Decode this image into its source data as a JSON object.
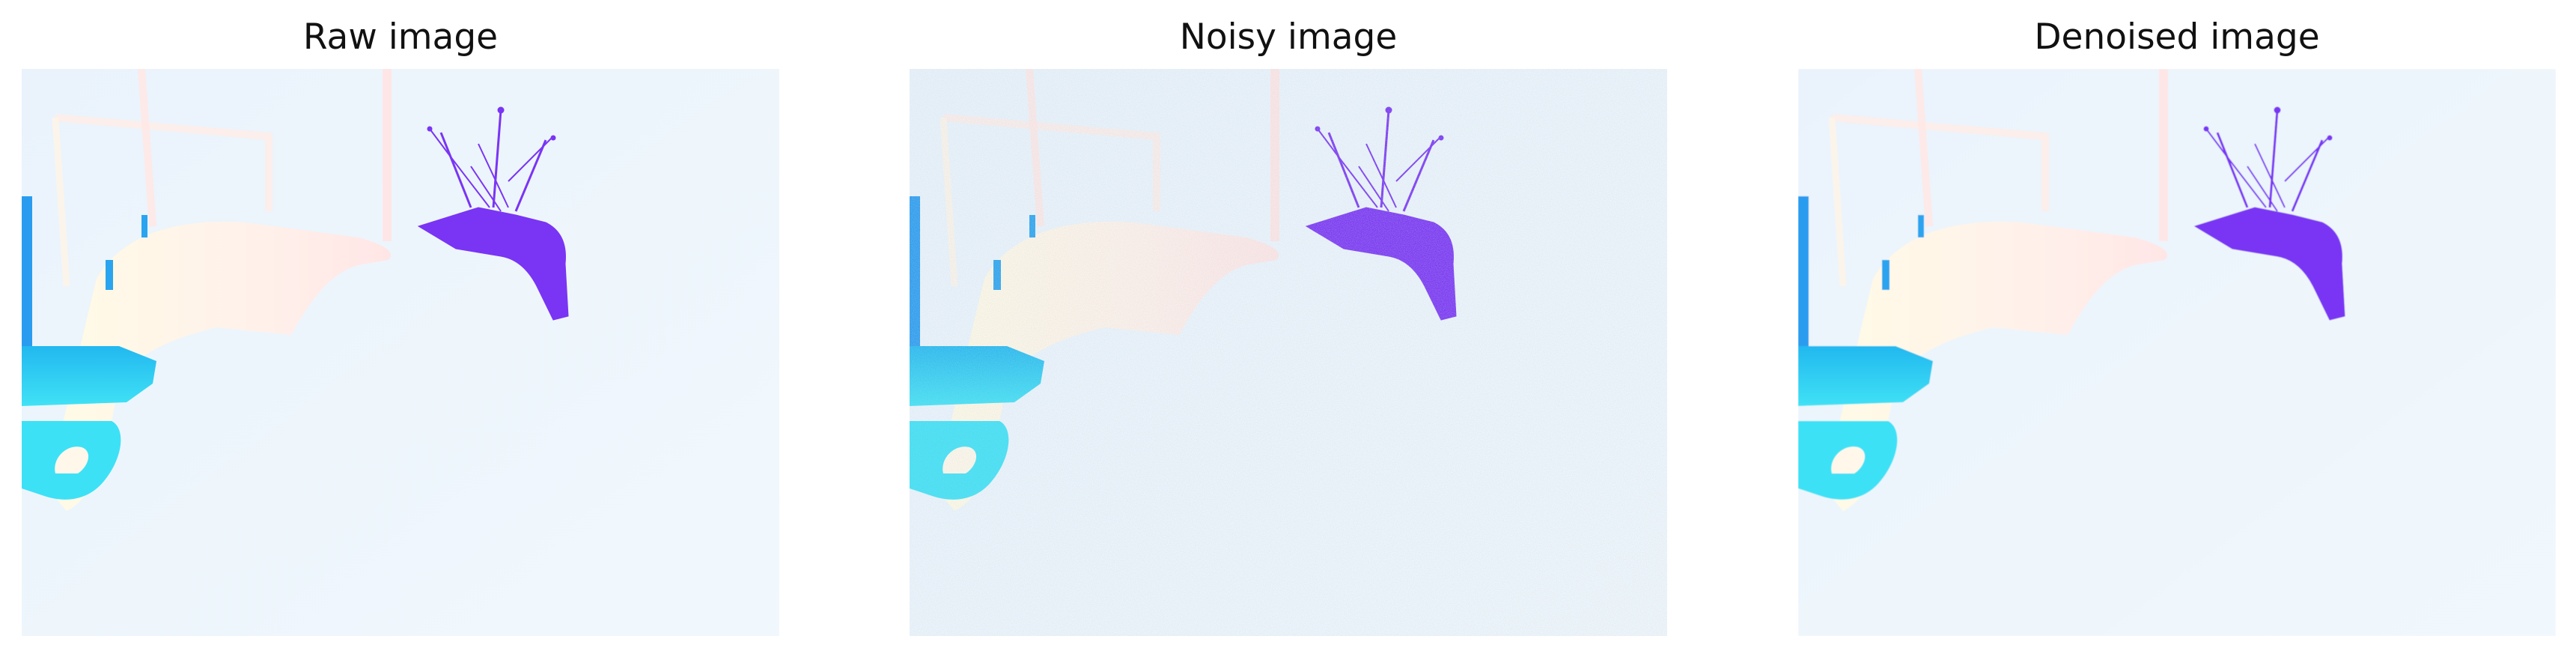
{
  "panels": [
    {
      "title": "Raw image",
      "style": "clean"
    },
    {
      "title": "Noisy image",
      "style": "noisy"
    },
    {
      "title": "Denoised image",
      "style": "smooth"
    }
  ],
  "colors": {
    "background_light": "#eef6fd",
    "robot_purple": "#7a34f4",
    "cyan_bright": "#35dcf5",
    "blue": "#2aa4ef",
    "cream": "#fff8ea",
    "pink_pale": "#ffe8e6"
  }
}
